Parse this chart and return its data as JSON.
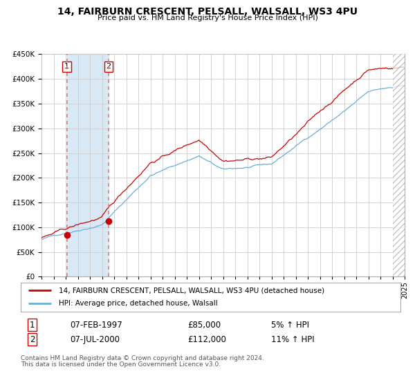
{
  "title": "14, FAIRBURN CRESCENT, PELSALL, WALSALL, WS3 4PU",
  "subtitle": "Price paid vs. HM Land Registry's House Price Index (HPI)",
  "legend_line1": "14, FAIRBURN CRESCENT, PELSALL, WALSALL, WS3 4PU (detached house)",
  "legend_line2": "HPI: Average price, detached house, Walsall",
  "transaction1_date": "07-FEB-1997",
  "transaction1_price": "£85,000",
  "transaction1_hpi": "5% ↑ HPI",
  "transaction2_date": "07-JUL-2000",
  "transaction2_price": "£112,000",
  "transaction2_hpi": "11% ↑ HPI",
  "footer": "Contains HM Land Registry data © Crown copyright and database right 2024.\nThis data is licensed under the Open Government Licence v3.0.",
  "transaction1_x": 1997.1,
  "transaction1_y": 85000,
  "transaction2_x": 2000.55,
  "transaction2_y": 112000,
  "vline1_x": 1997.1,
  "vline2_x": 2000.55,
  "xmin": 1995.0,
  "xmax": 2025.0,
  "ymin": 0,
  "ymax": 450000,
  "yticks": [
    0,
    50000,
    100000,
    150000,
    200000,
    250000,
    300000,
    350000,
    400000,
    450000
  ],
  "chart_bg": "#ffffff",
  "shade_between_color": "#d8e8f5",
  "hatch_region_start": 2024.0,
  "hatch_region_end": 2025.0,
  "hpi_color": "#6aaed6",
  "price_color": "#cc0000",
  "grid_color": "#cccccc",
  "vline_color": "#e08080"
}
